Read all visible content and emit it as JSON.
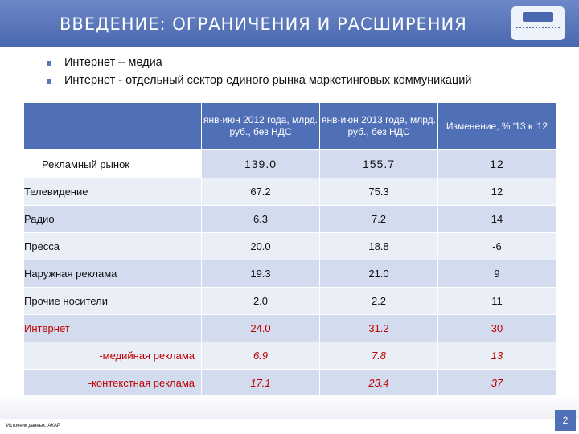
{
  "slide": {
    "title": "ВВЕДЕНИЕ: ОГРАНИЧЕНИЯ И РАСШИРЕНИЯ",
    "bullets": [
      "Интернет – медиа",
      "Интернет - отдельный сектор единого рынка маркетинговых коммуникаций"
    ],
    "source": "Источник данных: АКАР",
    "page_number": "2"
  },
  "table": {
    "headers": [
      "янв-июн 2012 года, млрд. руб., без НДС",
      "янв-июн 2013 года, млрд. руб., без НДС",
      "Изменение, % '13 к '12"
    ],
    "rows": [
      {
        "label": "Рекламный рынок",
        "v2012": "139.0",
        "v2013": "155.7",
        "change": "12"
      },
      {
        "label": "Телевидение",
        "v2012": "67.2",
        "v2013": "75.3",
        "change": "12"
      },
      {
        "label": "Радио",
        "v2012": "6.3",
        "v2013": "7.2",
        "change": "14"
      },
      {
        "label": "Пресса",
        "v2012": "20.0",
        "v2013": "18.8",
        "change": "-6"
      },
      {
        "label": "Наружная реклама",
        "v2012": "19.3",
        "v2013": "21.0",
        "change": "9"
      },
      {
        "label": "Прочие носители",
        "v2012": "2.0",
        "v2013": "2.2",
        "change": "11"
      },
      {
        "label": "Интернет",
        "v2012": "24.0",
        "v2013": "31.2",
        "change": "30"
      },
      {
        "label": "-медийная реклама",
        "v2012": "6.9",
        "v2013": "7.8",
        "change": "13"
      },
      {
        "label": "-контекстная реклама",
        "v2012": "17.1",
        "v2013": "23.4",
        "change": "37"
      }
    ]
  },
  "colors": {
    "header_bg": "#4f6fb6",
    "row_dark": "#d3dbee",
    "row_light": "#eaeef7",
    "internet_text": "#c00000"
  }
}
